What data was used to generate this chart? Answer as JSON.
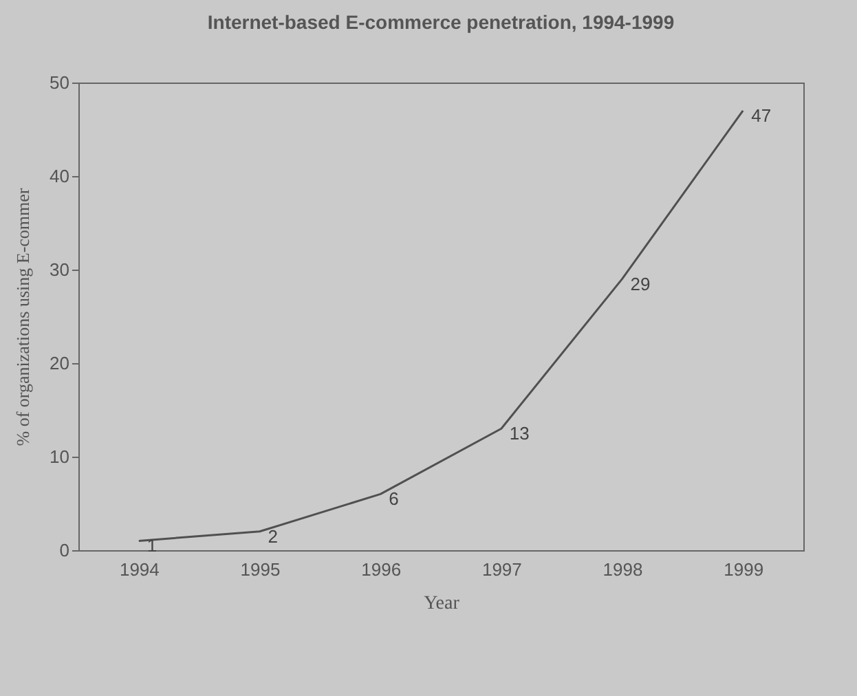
{
  "chart_data": {
    "type": "line",
    "title": "Internet-based E-commerce penetration, 1994-1999",
    "xlabel": "Year",
    "ylabel": "% of organizations using E-commer",
    "categories": [
      "1994",
      "1995",
      "1996",
      "1997",
      "1998",
      "1999"
    ],
    "series": [
      {
        "color": "#505050",
        "values": [
          1,
          2,
          6,
          13,
          29,
          47
        ]
      }
    ],
    "ylim": [
      0,
      50
    ],
    "yticks": [
      0,
      10,
      20,
      30,
      40,
      50
    ],
    "data_labels": true,
    "grid": false,
    "legend": false,
    "marker": "none",
    "line_style": "solid"
  }
}
